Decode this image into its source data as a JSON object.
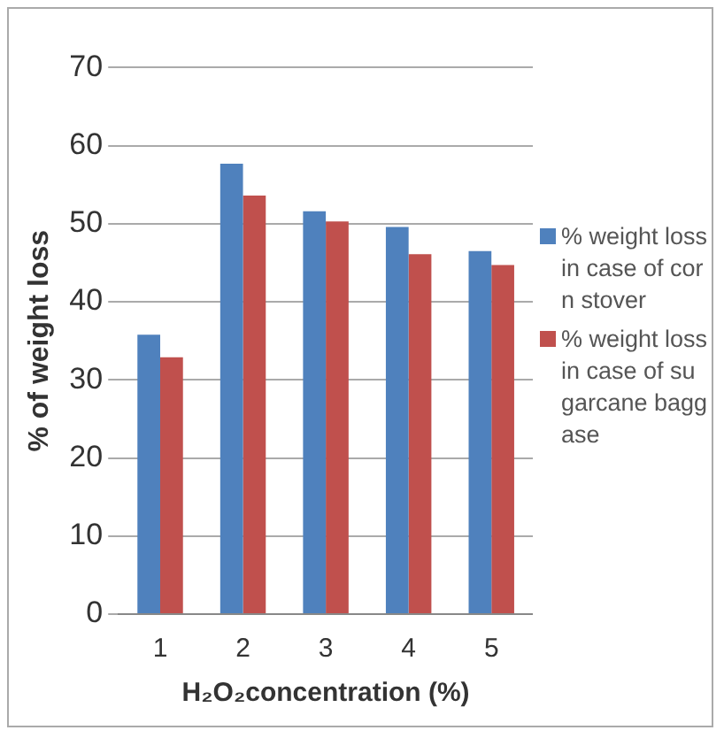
{
  "chart_data": {
    "type": "bar",
    "xlabel": "H₂O₂concentration (%)",
    "ylabel": "% of weight loss",
    "categories": [
      "1",
      "2",
      "3",
      "4",
      "5"
    ],
    "series": [
      {
        "name": "% weight loss in case of corn stover",
        "color": "#4f81bd",
        "values": [
          35.8,
          57.7,
          51.6,
          49.6,
          46.5
        ]
      },
      {
        "name": "% weight loss in case of sugarcane baggase",
        "color": "#c0504d",
        "values": [
          32.9,
          53.6,
          50.3,
          46.1,
          44.7
        ]
      }
    ],
    "ylim": [
      0,
      70
    ],
    "yticks": [
      0,
      10,
      20,
      30,
      40,
      50,
      60,
      70
    ],
    "grid": "y",
    "legend": "right"
  }
}
